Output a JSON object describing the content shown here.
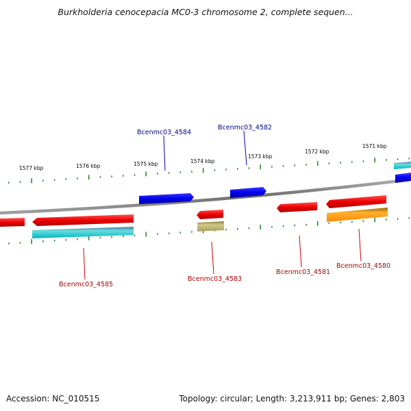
{
  "title": "Burkholderia cenocepacia MC0-3 chromosome 2, complete sequen...",
  "footer": {
    "accession": "Accession: NC_010515",
    "topology": "Topology: circular; Length: 3,213,911 bp; Genes: 2,803"
  },
  "ruler": {
    "labels": [
      "1577 kbp",
      "1576 kbp",
      "1575 kbp",
      "1574 kbp",
      "1573 kbp",
      "1572 kbp",
      "1571 kbp"
    ]
  },
  "genes": [
    {
      "name": "Bcenmc03_4584",
      "strand": "plus",
      "color": "#0000cc"
    },
    {
      "name": "Bcenmc03_4582",
      "strand": "plus",
      "color": "#0000cc"
    },
    {
      "name": "Bcenmc03_4585",
      "strand": "minus",
      "color": "#cc0000"
    },
    {
      "name": "Bcenmc03_4583",
      "strand": "minus",
      "color": "#cc0000"
    },
    {
      "name": "Bcenmc03_4581",
      "strand": "minus",
      "color": "#cc0000"
    },
    {
      "name": "Bcenmc03_4580",
      "strand": "minus",
      "color": "#cc0000"
    }
  ],
  "colors": {
    "tick": "#2a8a2a",
    "backbone": "#808080",
    "plus_gene": "#0000ff",
    "minus_gene": "#ff0000",
    "cds_cyan": "#00cccc",
    "cds_olive": "#b8b06a",
    "cds_orange": "#ff9900"
  }
}
